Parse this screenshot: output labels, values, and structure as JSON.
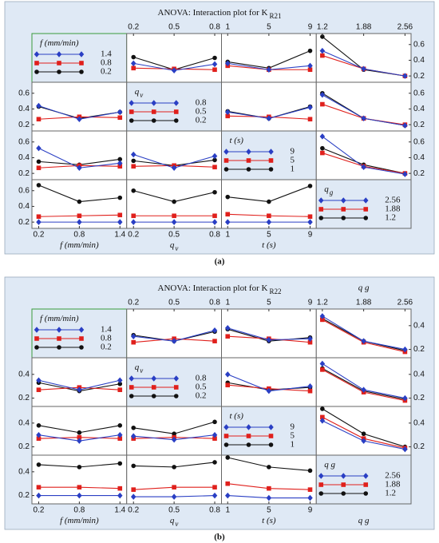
{
  "chart_data": [
    {
      "type": "line",
      "panel_label": "(a)",
      "title": "ANOVA: Interaction plot for K",
      "title_subscript": "R21",
      "ylim": [
        0.12,
        0.74
      ],
      "yticks": [
        0.2,
        0.4,
        0.6
      ],
      "level_colors": [
        "#111111",
        "#e0201c",
        "#2a3fc4"
      ],
      "level_markers": [
        "circle",
        "square",
        "diamond"
      ],
      "factors": [
        {
          "levels": [
            0.2,
            0.8,
            1.4
          ],
          "xlim": [
            0.1,
            1.5
          ]
        },
        {
          "levels": [
            0.2,
            0.5,
            0.8
          ],
          "xlim": [
            0.15,
            0.85
          ]
        },
        {
          "levels": [
            1,
            5,
            9
          ],
          "xlim": [
            0.4,
            9.6
          ]
        },
        {
          "levels": [
            1.2,
            1.88,
            2.56
          ],
          "xlim": [
            1.1,
            2.66
          ]
        }
      ],
      "legend_titles": [
        [
          "f (mm/min)"
        ],
        [
          "q",
          "v"
        ],
        [
          "t (s)"
        ],
        [
          "q",
          "g"
        ]
      ],
      "x_labels": [
        [
          "f (mm/min)"
        ],
        [
          "q",
          "v"
        ],
        [
          "t (s)"
        ]
      ],
      "matrix": [
        [
          null,
          [
            [
              0.44,
              0.28,
              0.43
            ],
            [
              0.3,
              0.29,
              0.28
            ],
            [
              0.36,
              0.27,
              0.35
            ]
          ],
          [
            [
              0.38,
              0.3,
              0.52
            ],
            [
              0.33,
              0.28,
              0.28
            ],
            [
              0.36,
              0.28,
              0.33
            ]
          ],
          [
            [
              0.7,
              0.28,
              0.2
            ],
            [
              0.46,
              0.29,
              0.2
            ],
            [
              0.52,
              0.29,
              0.2
            ]
          ]
        ],
        [
          [
            [
              0.43,
              0.28,
              0.36
            ],
            [
              0.27,
              0.3,
              0.29
            ],
            [
              0.44,
              0.27,
              0.36
            ]
          ],
          null,
          [
            [
              0.37,
              0.28,
              0.43
            ],
            [
              0.31,
              0.3,
              0.27
            ],
            [
              0.36,
              0.28,
              0.42
            ]
          ],
          [
            [
              0.6,
              0.28,
              0.19
            ],
            [
              0.46,
              0.28,
              0.2
            ],
            [
              0.58,
              0.28,
              0.19
            ]
          ]
        ],
        [
          [
            [
              0.35,
              0.31,
              0.38
            ],
            [
              0.27,
              0.3,
              0.29
            ],
            [
              0.52,
              0.27,
              0.33
            ]
          ],
          [
            [
              0.36,
              0.3,
              0.37
            ],
            [
              0.29,
              0.3,
              0.28
            ],
            [
              0.44,
              0.27,
              0.42
            ]
          ],
          null,
          [
            [
              0.52,
              0.31,
              0.2
            ],
            [
              0.46,
              0.29,
              0.2
            ],
            [
              0.67,
              0.28,
              0.19
            ]
          ]
        ],
        [
          [
            [
              0.67,
              0.46,
              0.51
            ],
            [
              0.27,
              0.28,
              0.29
            ],
            [
              0.2,
              0.2,
              0.2
            ]
          ],
          [
            [
              0.6,
              0.46,
              0.58
            ],
            [
              0.28,
              0.28,
              0.28
            ],
            [
              0.2,
              0.2,
              0.2
            ]
          ],
          [
            [
              0.52,
              0.46,
              0.66
            ],
            [
              0.3,
              0.28,
              0.27
            ],
            [
              0.2,
              0.2,
              0.2
            ]
          ],
          null
        ]
      ]
    },
    {
      "type": "line",
      "panel_label": "(b)",
      "title": "ANOVA: Interaction plot for K",
      "title_subscript": "R22",
      "ylim": [
        0.13,
        0.54
      ],
      "yticks": [
        0.2,
        0.4
      ],
      "level_colors": [
        "#111111",
        "#e0201c",
        "#2a3fc4"
      ],
      "level_markers": [
        "circle",
        "square",
        "diamond"
      ],
      "factors": [
        {
          "levels": [
            0.2,
            0.8,
            1.4
          ],
          "xlim": [
            0.1,
            1.5
          ]
        },
        {
          "levels": [
            0.2,
            0.5,
            0.8
          ],
          "xlim": [
            0.15,
            0.85
          ]
        },
        {
          "levels": [
            1,
            5,
            9
          ],
          "xlim": [
            0.4,
            9.6
          ]
        },
        {
          "levels": [
            1.2,
            1.88,
            2.56
          ],
          "xlim": [
            1.1,
            2.66
          ]
        }
      ],
      "legend_titles": [
        [
          "f (mm/min)"
        ],
        [
          "q",
          "v"
        ],
        [
          "t (s)"
        ],
        [
          "q g"
        ]
      ],
      "x_labels": [
        [
          "f (mm/min)"
        ],
        [
          "q",
          "v"
        ],
        [
          "t (s)"
        ],
        [
          "q g"
        ]
      ],
      "top_label": "q g",
      "matrix": [
        [
          null,
          [
            [
              0.32,
              0.27,
              0.35
            ],
            [
              0.26,
              0.29,
              0.27
            ],
            [
              0.31,
              0.27,
              0.36
            ]
          ],
          [
            [
              0.37,
              0.27,
              0.3
            ],
            [
              0.31,
              0.29,
              0.26
            ],
            [
              0.38,
              0.28,
              0.29
            ]
          ],
          [
            [
              0.46,
              0.27,
              0.19
            ],
            [
              0.45,
              0.26,
              0.18
            ],
            [
              0.48,
              0.27,
              0.2
            ]
          ]
        ],
        [
          [
            [
              0.33,
              0.26,
              0.32
            ],
            [
              0.27,
              0.29,
              0.27
            ],
            [
              0.35,
              0.27,
              0.35
            ]
          ],
          null,
          [
            [
              0.33,
              0.27,
              0.29
            ],
            [
              0.31,
              0.28,
              0.26
            ],
            [
              0.4,
              0.26,
              0.3
            ]
          ],
          [
            [
              0.45,
              0.26,
              0.19
            ],
            [
              0.44,
              0.25,
              0.18
            ],
            [
              0.49,
              0.27,
              0.2
            ]
          ]
        ],
        [
          [
            [
              0.38,
              0.32,
              0.38
            ],
            [
              0.27,
              0.28,
              0.27
            ],
            [
              0.3,
              0.25,
              0.3
            ]
          ],
          [
            [
              0.36,
              0.31,
              0.41
            ],
            [
              0.27,
              0.28,
              0.27
            ],
            [
              0.29,
              0.26,
              0.3
            ]
          ],
          null,
          [
            [
              0.52,
              0.31,
              0.2
            ],
            [
              0.45,
              0.27,
              0.19
            ],
            [
              0.42,
              0.25,
              0.18
            ]
          ]
        ],
        [
          [
            [
              0.46,
              0.44,
              0.47
            ],
            [
              0.27,
              0.27,
              0.26
            ],
            [
              0.2,
              0.2,
              0.2
            ]
          ],
          [
            [
              0.45,
              0.44,
              0.48
            ],
            [
              0.25,
              0.27,
              0.27
            ],
            [
              0.19,
              0.19,
              0.2
            ]
          ],
          [
            [
              0.52,
              0.44,
              0.41
            ],
            [
              0.3,
              0.26,
              0.25
            ],
            [
              0.2,
              0.18,
              0.18
            ]
          ],
          null
        ]
      ]
    }
  ]
}
